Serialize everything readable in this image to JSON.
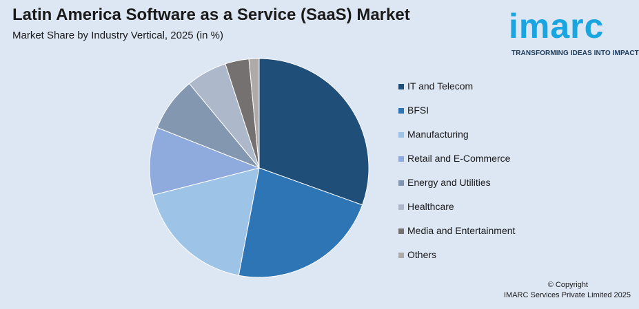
{
  "header": {
    "title": "Latin America Software as a Service (SaaS) Market",
    "subtitle": "Market Share by Industry Vertical, 2025 (in %)"
  },
  "logo": {
    "word": "imarc",
    "tagline": "TRANSFORMING IDEAS INTO IMPACT"
  },
  "chart_data": {
    "type": "pie",
    "categories": [
      "IT and Telecom",
      "BFSI",
      "Manufacturing",
      "Retail and E-Commerce",
      "Energy and Utilities",
      "Healthcare",
      "Media and Entertainment",
      "Others"
    ],
    "values": [
      30.5,
      22.5,
      18,
      10,
      8,
      6,
      3.5,
      1.5
    ],
    "colors": [
      "#1f4e79",
      "#2e75b6",
      "#9dc3e6",
      "#8faadc",
      "#8497b0",
      "#adb9ca",
      "#767171",
      "#aeaaaa"
    ],
    "start_angle_deg": 0,
    "direction": "clockwise",
    "legend_position": "right"
  },
  "footer": {
    "copyright": "© Copyright",
    "company": "IMARC Services Private Limited 2025"
  }
}
